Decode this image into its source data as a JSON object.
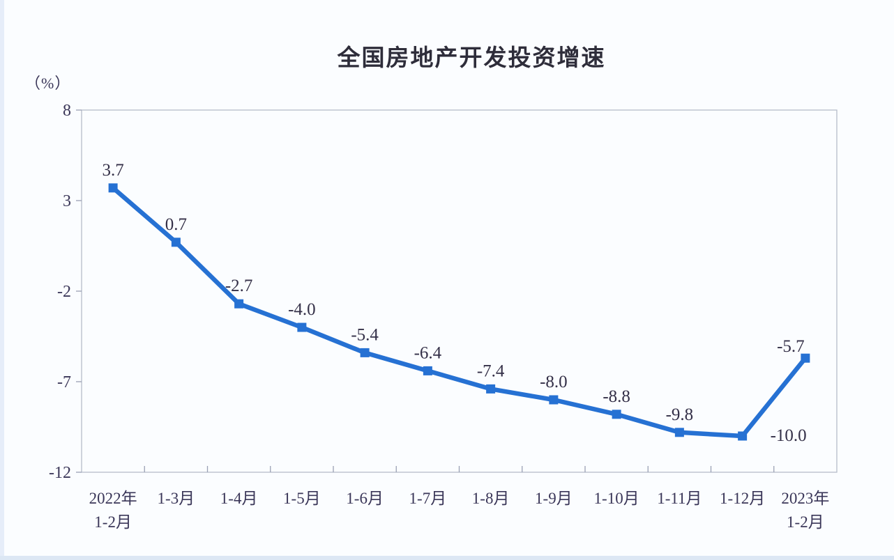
{
  "header": {
    "title": "全国房地产开发投资增速",
    "unit_label": "（%）"
  },
  "chart_data": {
    "type": "line",
    "title": "全国房地产开发投资增速",
    "unit": "（%）",
    "categories": [
      "2022年\n1-2月",
      "1-3月",
      "1-4月",
      "1-5月",
      "1-6月",
      "1-7月",
      "1-8月",
      "1-9月",
      "1-10月",
      "1-11月",
      "1-12月",
      "2023年\n1-2月"
    ],
    "values": [
      3.7,
      0.7,
      -2.7,
      -4.0,
      -5.4,
      -6.4,
      -7.4,
      -8.0,
      -8.8,
      -9.8,
      -10.0,
      -5.7
    ],
    "value_labels": [
      "3.7",
      "0.7",
      "-2.7",
      "-4.0",
      "-5.4",
      "-6.4",
      "-7.4",
      "-8.0",
      "-8.8",
      "-9.8",
      "-10.0",
      "-5.7"
    ],
    "label_placements": [
      "above",
      "above",
      "above",
      "above",
      "above",
      "above",
      "above",
      "above",
      "above",
      "above",
      "right",
      "above-left"
    ],
    "yticks": [
      8,
      3,
      -2,
      -7,
      -12
    ],
    "ylim": [
      -12,
      8
    ],
    "grid": false,
    "legend": "none",
    "marker": "square",
    "colors": {
      "line": "#2671d3",
      "marker": "#2671d3",
      "text": "#3a3658",
      "data_label": "#343048",
      "axis_border": "#b6bdc9",
      "tick": "#9aa0b4",
      "background": "#fbfdff"
    }
  }
}
